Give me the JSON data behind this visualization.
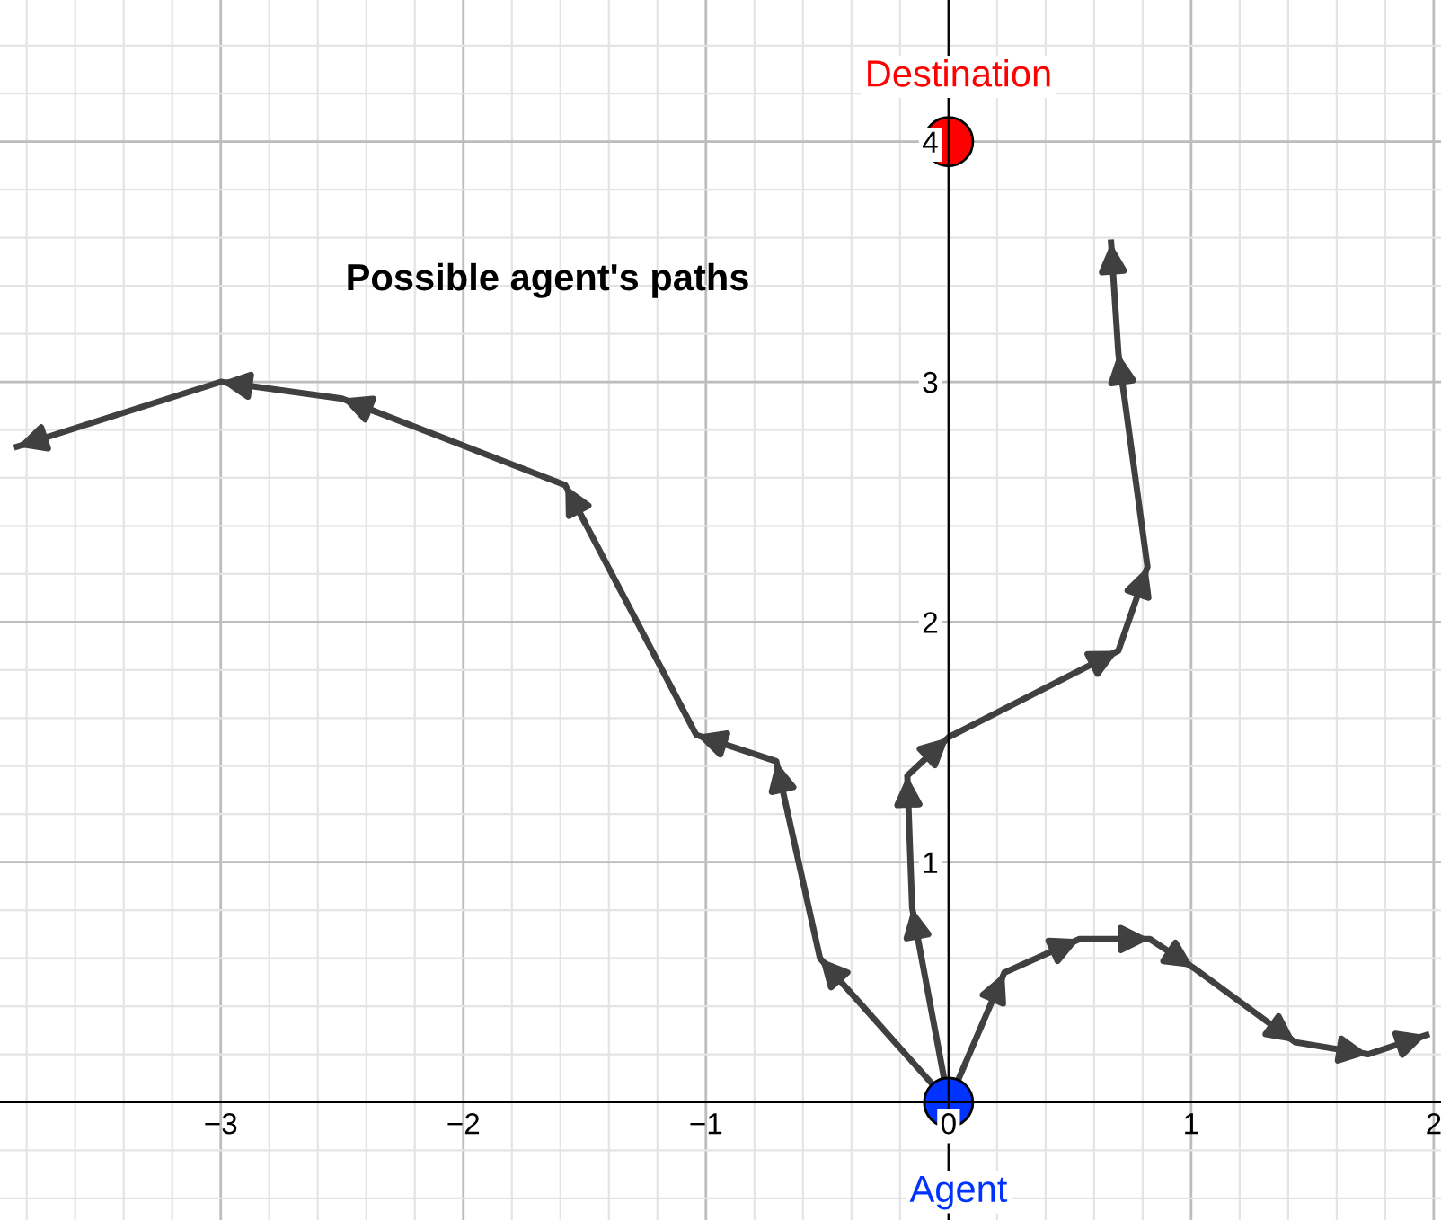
{
  "chart_data": {
    "type": "line",
    "title": null,
    "annotations": [
      "Possible agent's paths"
    ],
    "xlim": [
      -3.91,
      2.03
    ],
    "ylim": [
      -0.49,
      4.59
    ],
    "xticks": [
      {
        "value": -3,
        "label": "−3"
      },
      {
        "value": -2,
        "label": "−2"
      },
      {
        "value": -1,
        "label": "−1"
      },
      0,
      1,
      2
    ],
    "yticks": [
      1,
      2,
      3,
      4
    ],
    "grid": true,
    "marker": "none",
    "line_style": "solid",
    "series": [
      {
        "color": "#404040",
        "x": [
          0,
          -0.53,
          -0.71,
          -1.04,
          -1.58,
          -2.5,
          -3.0,
          -3.84
        ],
        "values": [
          0,
          0.6,
          1.42,
          1.53,
          2.57,
          2.93,
          3.0,
          2.73
        ]
      },
      {
        "color": "#404040",
        "x": [
          0,
          -0.15,
          -0.17,
          0,
          0.7,
          0.82,
          0.7,
          0.67
        ],
        "values": [
          0,
          0.81,
          1.36,
          1.52,
          1.88,
          2.23,
          3.12,
          3.58
        ]
      },
      {
        "color": "#404040",
        "x": [
          0,
          0.23,
          0.54,
          0.83,
          1.01,
          1.43,
          1.73,
          1.97
        ],
        "values": [
          0,
          0.54,
          0.68,
          0.68,
          0.56,
          0.25,
          0.2,
          0.28
        ]
      },
      {
        "type": "scatter",
        "marker": "circle",
        "name": "Destination",
        "color": "#ff0000",
        "x": [
          0
        ],
        "values": [
          4
        ]
      },
      {
        "type": "scatter",
        "marker": "circle",
        "name": "Agent",
        "color": "#0033ff",
        "x": [
          0
        ],
        "values": [
          0
        ]
      }
    ]
  }
}
